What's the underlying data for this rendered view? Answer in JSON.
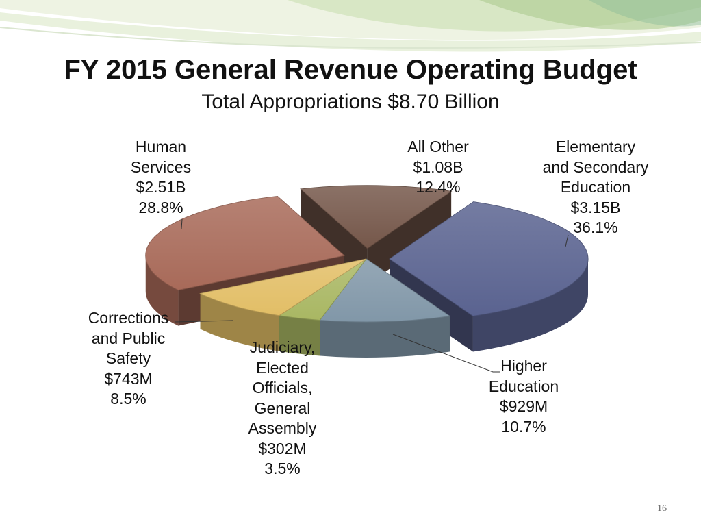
{
  "slide": {
    "title": "FY 2015 General Revenue Operating Budget",
    "subtitle": "Total Appropriations  $8.70 Billion",
    "page_number": "16"
  },
  "chart_data": {
    "type": "pie",
    "title": "FY 2015 General Revenue Operating Budget",
    "subtitle": "Total Appropriations  $8.70 Billion",
    "total": "$8.70 Billion",
    "three_d": true,
    "slices": [
      {
        "key": "elementary",
        "name_lines": [
          "Elementary",
          "and Secondary",
          "Education"
        ],
        "amount": "$3.15B",
        "value": 3.15,
        "percent": 36.1,
        "percent_label": "36.1%",
        "color": "#5a6390",
        "exploded": true
      },
      {
        "key": "higher",
        "name_lines": [
          "Higher",
          "Education"
        ],
        "amount": "$929M",
        "value": 0.929,
        "percent": 10.7,
        "percent_label": "10.7%",
        "color": "#8197a8",
        "exploded": false
      },
      {
        "key": "judiciary",
        "name_lines": [
          "Judiciary,",
          "Elected",
          "Officials,",
          "General",
          "Assembly"
        ],
        "amount": "$302M",
        "value": 0.302,
        "percent": 3.5,
        "percent_label": "3.5%",
        "color": "#a9b763",
        "exploded": false
      },
      {
        "key": "corrections",
        "name_lines": [
          "Corrections",
          "and Public",
          "Safety"
        ],
        "amount": "$743M",
        "value": 0.743,
        "percent": 8.5,
        "percent_label": "8.5%",
        "color": "#e2be66",
        "exploded": false
      },
      {
        "key": "human",
        "name_lines": [
          "Human",
          "Services"
        ],
        "amount": "$2.51B",
        "value": 2.51,
        "percent": 28.8,
        "percent_label": "28.8%",
        "color": "#a86a59",
        "exploded": true
      },
      {
        "key": "other",
        "name_lines": [
          "All Other"
        ],
        "amount": "$1.08B",
        "value": 1.08,
        "percent": 12.4,
        "percent_label": "12.4%",
        "color": "#75574a",
        "exploded": true
      }
    ]
  }
}
